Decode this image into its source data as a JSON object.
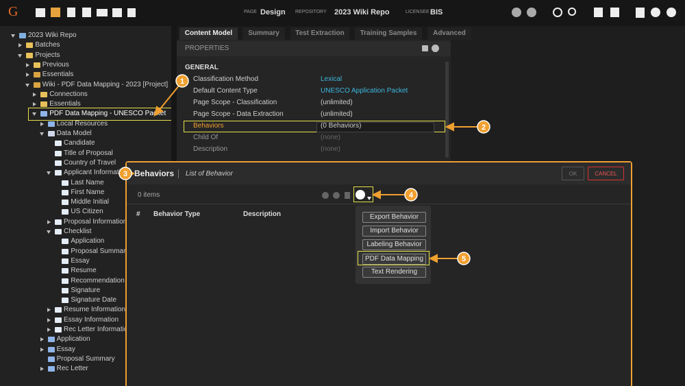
{
  "toolbar": {
    "logo": "G",
    "page_label": "PAGE",
    "page": "Design",
    "repository_label": "REPOSITORY",
    "repository": "2023 Wiki Repo",
    "licensee_label": "LICENSEE",
    "licensee": "BIS"
  },
  "tree": [
    "2023 Wiki Repo",
    "Batches",
    "Projects",
    "Previous",
    "Essentials",
    "Wiki - PDF Data Mapping - 2023 [Project]",
    "Connections",
    "Essentials",
    "PDF Data Mapping - UNESCO Packet",
    "Local Resources",
    "Data Model",
    "Candidate",
    "Title of Proposal",
    "Country of Travel",
    "Applicant Information",
    "Last Name",
    "First Name",
    "Middle Initial",
    "US Citizen",
    "Proposal Information",
    "Checklist",
    "Application",
    "Proposal Summary",
    "Essay",
    "Resume",
    "Recommendation Letter",
    "Signature",
    "Signature Date",
    "Resume Information",
    "Essay Information",
    "Rec Letter Information",
    "Application",
    "Essay",
    "Proposal Summary",
    "Rec Letter"
  ],
  "tabs": [
    "Content Model",
    "Summary",
    "Test Extraction",
    "Training Samples",
    "Advanced"
  ],
  "properties": {
    "title": "PROPERTIES",
    "section": "GENERAL",
    "rows": [
      [
        "Classification Method",
        "Lexical"
      ],
      [
        "Default Content Type",
        "UNESCO Application Packet"
      ],
      [
        "Page Scope - Classification",
        "(unlimited)"
      ],
      [
        "Page Scope - Data Extraction",
        "(unlimited)"
      ],
      [
        "Behaviors",
        "(0 Behaviors)"
      ],
      [
        "Child Of",
        "(none)"
      ],
      [
        "Description",
        "(none)"
      ]
    ]
  },
  "dialog": {
    "title": "Behaviors",
    "subtitle": "List of Behavior",
    "ok": "OK",
    "cancel": "CANCEL",
    "count": "0 items",
    "columns": [
      "#",
      "Behavior Type",
      "Description"
    ],
    "menu": [
      "Export Behavior",
      "Import Behavior",
      "Labeling Behavior",
      "PDF Data Mapping",
      "Text Rendering"
    ]
  },
  "callouts": [
    "1",
    "2",
    "3",
    "4",
    "5"
  ]
}
